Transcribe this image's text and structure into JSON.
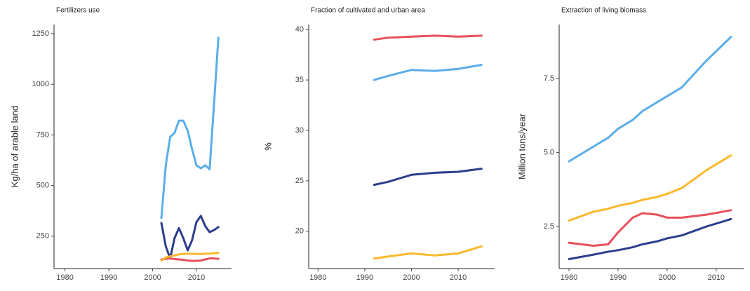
{
  "chart_data": [
    {
      "type": "line",
      "title": "Fertilizers use",
      "y_label": "Kg/ha of arable land",
      "x": [
        2002,
        2003,
        2004,
        2005,
        2006,
        2007,
        2008,
        2009,
        2010,
        2011,
        2012,
        2013,
        2014,
        2015
      ],
      "series": [
        {
          "color": "#5aaeea",
          "values": [
            340,
            600,
            740,
            760,
            820,
            820,
            770,
            680,
            600,
            585,
            600,
            580,
            900,
            1230
          ]
        },
        {
          "color": "#2c3e8c",
          "values": [
            315,
            200,
            140,
            240,
            290,
            240,
            180,
            230,
            320,
            350,
            300,
            270,
            280,
            295
          ]
        },
        {
          "color": "#e8505b",
          "values": [
            135,
            138,
            140,
            137,
            135,
            133,
            130,
            128,
            128,
            130,
            135,
            140,
            140,
            138
          ]
        },
        {
          "color": "#f9b92b",
          "values": [
            130,
            145,
            150,
            155,
            160,
            162,
            163,
            163,
            162,
            162,
            163,
            164,
            166,
            168
          ]
        }
      ],
      "xlim": [
        1977.5,
        2018
      ],
      "xticks": [
        1980,
        1990,
        2000,
        2010
      ],
      "ylim": [
        90,
        1295
      ],
      "yticks": [
        250,
        500,
        750,
        1000,
        1250
      ]
    },
    {
      "type": "line",
      "title": "Fraction of cultivated and urban area",
      "y_label": "%",
      "x": [
        1992,
        1995,
        2000,
        2005,
        2010,
        2015
      ],
      "series": [
        {
          "color": "#e8505b",
          "values": [
            39.0,
            39.2,
            39.3,
            39.4,
            39.3,
            39.4
          ]
        },
        {
          "color": "#5aaeea",
          "values": [
            35.0,
            35.4,
            36.0,
            35.9,
            36.1,
            36.5
          ]
        },
        {
          "color": "#2c3e8c",
          "values": [
            24.6,
            24.9,
            25.6,
            25.8,
            25.9,
            26.2
          ]
        },
        {
          "color": "#f9b92b",
          "values": [
            17.3,
            17.5,
            17.8,
            17.6,
            17.8,
            18.5
          ]
        }
      ],
      "xlim": [
        1978,
        2017.8
      ],
      "xticks": [
        1980,
        1990,
        2000,
        2010
      ],
      "ylim": [
        16.3,
        40.5
      ],
      "yticks": [
        20,
        25,
        30,
        35,
        40
      ]
    },
    {
      "type": "line",
      "title": "Extraction of living biomass",
      "y_label": "Million tons/year",
      "x": [
        1980,
        1985,
        1988,
        1990,
        1993,
        1995,
        1998,
        2000,
        2003,
        2008,
        2013
      ],
      "series": [
        {
          "color": "#5aaeea",
          "values": [
            4.7,
            5.2,
            5.5,
            5.8,
            6.1,
            6.4,
            6.7,
            6.9,
            7.2,
            8.1,
            8.9
          ]
        },
        {
          "color": "#f9b92b",
          "values": [
            2.7,
            3.0,
            3.1,
            3.2,
            3.3,
            3.4,
            3.5,
            3.6,
            3.8,
            4.4,
            4.9
          ]
        },
        {
          "color": "#e8505b",
          "values": [
            1.95,
            1.85,
            1.9,
            2.3,
            2.8,
            2.95,
            2.9,
            2.8,
            2.8,
            2.9,
            3.05
          ]
        },
        {
          "color": "#2c3e8c",
          "values": [
            1.4,
            1.55,
            1.65,
            1.7,
            1.8,
            1.9,
            2.0,
            2.1,
            2.2,
            2.5,
            2.75
          ]
        }
      ],
      "xlim": [
        1978,
        2015.6
      ],
      "xticks": [
        1980,
        1990,
        2000,
        2010
      ],
      "ylim": [
        1.08,
        9.32
      ],
      "yticks": [
        2.5,
        {
          "value": 5,
          "label": "5.0"
        },
        7.5
      ]
    }
  ]
}
